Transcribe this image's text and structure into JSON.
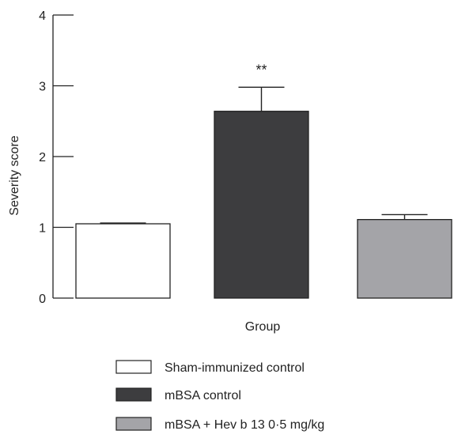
{
  "chart_data": {
    "type": "bar",
    "title": "",
    "xlabel": "Group",
    "ylabel": "Severity score",
    "ylim": [
      0,
      4
    ],
    "yticks": [
      0,
      1,
      2,
      3,
      4
    ],
    "grid": false,
    "legend_position": "bottom",
    "series": [
      {
        "name": "Sham-immunized control",
        "value": 1.05,
        "error": 0.01,
        "color": "#ffffff",
        "annotation": ""
      },
      {
        "name": "mBSA control",
        "value": 2.64,
        "error": 0.34,
        "color": "#3d3d3f",
        "annotation": "**"
      },
      {
        "name": "mBSA + Hev b 13 0·5 mg/kg",
        "value": 1.11,
        "error": 0.07,
        "color": "#a4a4a8",
        "annotation": ""
      }
    ]
  }
}
